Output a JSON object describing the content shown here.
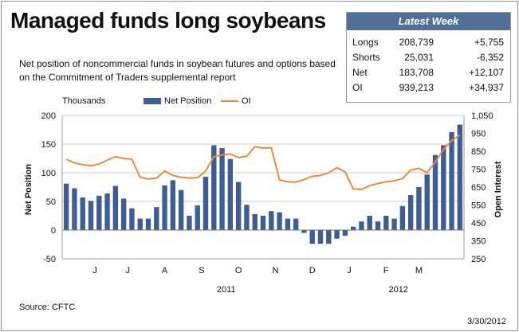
{
  "header": {
    "title": "Managed funds long soybeans",
    "subtitle": "Net position of noncommercial funds in soybean futures and options based on the Commitment of Traders supplemental report"
  },
  "latest_week": {
    "title": "Latest Week",
    "rows": [
      {
        "label": "Longs",
        "value": "208,739",
        "change": "+5,755"
      },
      {
        "label": "Shorts",
        "value": "25,031",
        "change": "-6,352"
      },
      {
        "label": "Net",
        "value": "183,708",
        "change": "+12,107"
      },
      {
        "label": "OI",
        "value": "939,213",
        "change": "+34,937"
      }
    ]
  },
  "footer": {
    "source": "Source: CFTC",
    "date": "3/30/2012"
  },
  "colors": {
    "bar": "#3d5d93",
    "line": "#ee8a3c",
    "grid": "#cccccc",
    "header_bg": "#4f6f99"
  },
  "chart_data": {
    "type": "bar",
    "units_label": "Thousands",
    "ylabel": "Net Position",
    "y2label": "Open Interest",
    "ylim": [
      -50,
      200
    ],
    "yticks": [
      -50,
      0,
      50,
      100,
      150,
      200
    ],
    "y2lim": [
      250,
      1050
    ],
    "y2ticks": [
      "250",
      "350",
      "450",
      "550",
      "650",
      "750",
      "850",
      "950",
      "1,050"
    ],
    "grid": true,
    "legend_position": "top",
    "month_labels": [
      {
        "label": "J",
        "index": 3.5
      },
      {
        "label": "J",
        "index": 7.5
      },
      {
        "label": "A",
        "index": 12.0
      },
      {
        "label": "S",
        "index": 16.5
      },
      {
        "label": "O",
        "index": 21.0
      },
      {
        "label": "N",
        "index": 25.5
      },
      {
        "label": "D",
        "index": 30.0
      },
      {
        "label": "J",
        "index": 34.5
      },
      {
        "label": "F",
        "index": 39.0
      },
      {
        "label": "M",
        "index": 43.0
      }
    ],
    "year_labels": [
      {
        "label": "2011",
        "index": 19.5
      },
      {
        "label": "2012",
        "index": 40.5
      }
    ],
    "series": [
      {
        "name": "Net Position",
        "type": "bar",
        "values": [
          81,
          73,
          57,
          51,
          60,
          64,
          77,
          55,
          38,
          20,
          20,
          40,
          78,
          87,
          70,
          25,
          43,
          93,
          148,
          143,
          124,
          84,
          44,
          28,
          25,
          33,
          31,
          20,
          20,
          -5,
          -24,
          -24,
          -24,
          -15,
          -10,
          6,
          15,
          25,
          15,
          25,
          20,
          42,
          61,
          75,
          97,
          131,
          148,
          171,
          184
        ]
      },
      {
        "name": "OI",
        "type": "line",
        "axis": "right",
        "values": [
          805,
          785,
          775,
          770,
          778,
          800,
          820,
          810,
          805,
          705,
          695,
          700,
          740,
          715,
          705,
          700,
          702,
          740,
          820,
          830,
          835,
          815,
          822,
          875,
          868,
          870,
          690,
          680,
          678,
          692,
          710,
          715,
          730,
          758,
          735,
          640,
          637,
          658,
          670,
          680,
          685,
          698,
          745,
          755,
          730,
          790,
          860,
          910,
          940
        ]
      }
    ]
  }
}
